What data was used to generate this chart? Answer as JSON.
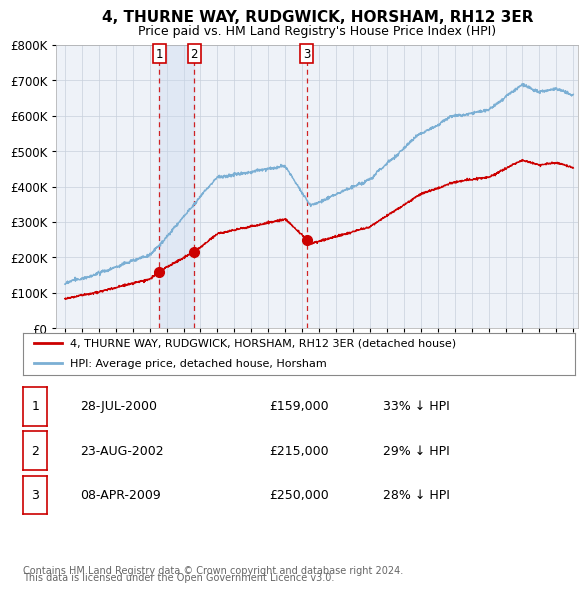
{
  "title": "4, THURNE WAY, RUDGWICK, HORSHAM, RH12 3ER",
  "subtitle": "Price paid vs. HM Land Registry's House Price Index (HPI)",
  "legend_line1": "4, THURNE WAY, RUDGWICK, HORSHAM, RH12 3ER (detached house)",
  "legend_line2": "HPI: Average price, detached house, Horsham",
  "footer1": "Contains HM Land Registry data © Crown copyright and database right 2024.",
  "footer2": "This data is licensed under the Open Government Licence v3.0.",
  "transactions": [
    {
      "num": 1,
      "date": "28-JUL-2000",
      "price": 159000,
      "pct": "33% ↓ HPI",
      "year": 2000.57
    },
    {
      "num": 2,
      "date": "23-AUG-2002",
      "price": 215000,
      "pct": "29% ↓ HPI",
      "year": 2002.64
    },
    {
      "num": 3,
      "date": "08-APR-2009",
      "price": 250000,
      "pct": "28% ↓ HPI",
      "year": 2009.27
    }
  ],
  "hpi_color": "#7bafd4",
  "price_color": "#cc0000",
  "plot_bg": "#eef2f8",
  "highlight_bg": "#dce6f2",
  "grid_color": "#c8d0dc",
  "dashed_color": "#cc0000",
  "ylim": [
    0,
    800000
  ],
  "yticks": [
    0,
    100000,
    200000,
    300000,
    400000,
    500000,
    600000,
    700000,
    800000
  ],
  "xstart": 1995,
  "xend": 2025
}
